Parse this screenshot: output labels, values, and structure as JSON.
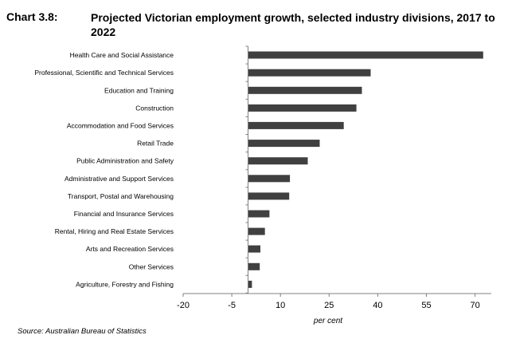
{
  "header": {
    "chart_number": "Chart 3.8:",
    "title": "Projected Victorian employment growth, selected industry divisions, 2017 to 2022"
  },
  "source": "Source: Australian Bureau of Statistics",
  "colors": {
    "bar": "#404040",
    "axis": "#808080"
  },
  "chart_data": {
    "type": "bar",
    "orientation": "horizontal",
    "title": "Projected Victorian employment growth, selected industry divisions, 2017 to 2022",
    "xlabel": "per cent",
    "ylabel": "",
    "xlim": [
      -20,
      75
    ],
    "xticks": [
      -20,
      -5,
      10,
      25,
      40,
      55,
      70
    ],
    "grid": false,
    "categories": [
      "Health Care and Social Assistance",
      "Professional, Scientific and Technical Services",
      "Education and Training",
      "Construction",
      "Accommodation and Food Services",
      "Retail Trade",
      "Public Administration and Safety",
      "Administrative and Support Services",
      "Transport, Postal and Warehousing",
      "Financial and Insurance Services",
      "Rental, Hiring and Real Estate Services",
      "Arts and Recreation Services",
      "Other Services",
      "Agriculture, Forestry and Fishing"
    ],
    "values": [
      72.5,
      37.8,
      35.1,
      33.4,
      29.5,
      22.1,
      18.4,
      12.9,
      12.7,
      6.6,
      5.2,
      3.8,
      3.6,
      1.2
    ]
  }
}
